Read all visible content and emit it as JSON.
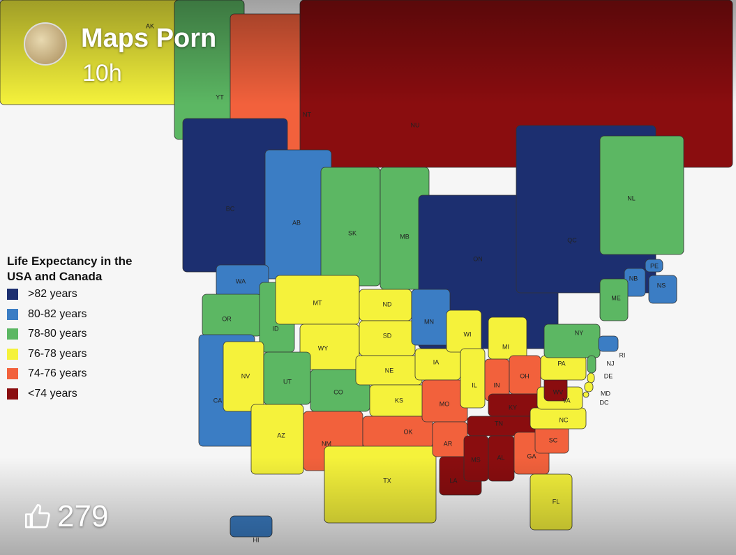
{
  "post": {
    "author": "Maps Porn",
    "time": "10h",
    "likes": 279
  },
  "map": {
    "legend": {
      "title": "Life Expectancy in the USA and Canada",
      "items": [
        {
          "label": ">82 years",
          "color": "#1c2f70"
        },
        {
          "label": "80-82 years",
          "color": "#3b7dc4"
        },
        {
          "label": "78-80 years",
          "color": "#5cb763"
        },
        {
          "label": "76-78 years",
          "color": "#f5f23b"
        },
        {
          "label": "74-76 years",
          "color": "#f2613c"
        },
        {
          "label": "<74 years",
          "color": "#8a0d0f"
        }
      ]
    },
    "regions": [
      {
        "label": "AK",
        "color": "#f5f23b"
      },
      {
        "label": "YT",
        "color": "#5cb763"
      },
      {
        "label": "NT",
        "color": "#f2613c"
      },
      {
        "label": "NU",
        "color": "#8a0d0f"
      },
      {
        "label": "BC",
        "color": "#1c2f70"
      },
      {
        "label": "AB",
        "color": "#3b7dc4"
      },
      {
        "label": "SK",
        "color": "#5cb763"
      },
      {
        "label": "MB",
        "color": "#5cb763"
      },
      {
        "label": "ON",
        "color": "#1c2f70"
      },
      {
        "label": "QC",
        "color": "#1c2f70"
      },
      {
        "label": "NL",
        "color": "#5cb763"
      },
      {
        "label": "PE",
        "color": "#3b7dc4"
      },
      {
        "label": "NS",
        "color": "#3b7dc4"
      },
      {
        "label": "NB",
        "color": "#3b7dc4"
      },
      {
        "label": "WA",
        "color": "#3b7dc4"
      },
      {
        "label": "OR",
        "color": "#5cb763"
      },
      {
        "label": "CA",
        "color": "#3b7dc4"
      },
      {
        "label": "ID",
        "color": "#5cb763"
      },
      {
        "label": "NV",
        "color": "#f5f23b"
      },
      {
        "label": "MT",
        "color": "#f5f23b"
      },
      {
        "label": "WY",
        "color": "#f5f23b"
      },
      {
        "label": "UT",
        "color": "#5cb763"
      },
      {
        "label": "CO",
        "color": "#5cb763"
      },
      {
        "label": "AZ",
        "color": "#f5f23b"
      },
      {
        "label": "NM",
        "color": "#f2613c"
      },
      {
        "label": "ND",
        "color": "#f5f23b"
      },
      {
        "label": "SD",
        "color": "#f5f23b"
      },
      {
        "label": "NE",
        "color": "#f5f23b"
      },
      {
        "label": "KS",
        "color": "#f5f23b"
      },
      {
        "label": "OK",
        "color": "#f2613c"
      },
      {
        "label": "TX",
        "color": "#f5f23b"
      },
      {
        "label": "MN",
        "color": "#3b7dc4"
      },
      {
        "label": "IA",
        "color": "#f5f23b"
      },
      {
        "label": "MO",
        "color": "#f2613c"
      },
      {
        "label": "AR",
        "color": "#f2613c"
      },
      {
        "label": "LA",
        "color": "#8a0d0f"
      },
      {
        "label": "WI",
        "color": "#f5f23b"
      },
      {
        "label": "IL",
        "color": "#f5f23b"
      },
      {
        "label": "MI",
        "color": "#f5f23b"
      },
      {
        "label": "IN",
        "color": "#f2613c"
      },
      {
        "label": "OH",
        "color": "#f2613c"
      },
      {
        "label": "KY",
        "color": "#8a0d0f"
      },
      {
        "label": "TN",
        "color": "#8a0d0f"
      },
      {
        "label": "MS",
        "color": "#8a0d0f"
      },
      {
        "label": "AL",
        "color": "#8a0d0f"
      },
      {
        "label": "GA",
        "color": "#f2613c"
      },
      {
        "label": "SC",
        "color": "#f2613c"
      },
      {
        "label": "NC",
        "color": "#f5f23b"
      },
      {
        "label": "VA",
        "color": "#f5f23b"
      },
      {
        "label": "WV",
        "color": "#8a0d0f"
      },
      {
        "label": "PA",
        "color": "#f5f23b"
      },
      {
        "label": "NY",
        "color": "#5cb763"
      },
      {
        "label": "ME",
        "color": "#5cb763"
      },
      {
        "label": "RI",
        "color": "#3b7dc4"
      },
      {
        "label": "NJ",
        "color": "#5cb763"
      },
      {
        "label": "DE",
        "color": "#f5f23b"
      },
      {
        "label": "MD",
        "color": "#f5f23b"
      },
      {
        "label": "DC",
        "color": "#f5f23b"
      },
      {
        "label": "FL",
        "color": "#f5f23b"
      },
      {
        "label": "HI",
        "color": "#3b7dc4"
      }
    ]
  }
}
